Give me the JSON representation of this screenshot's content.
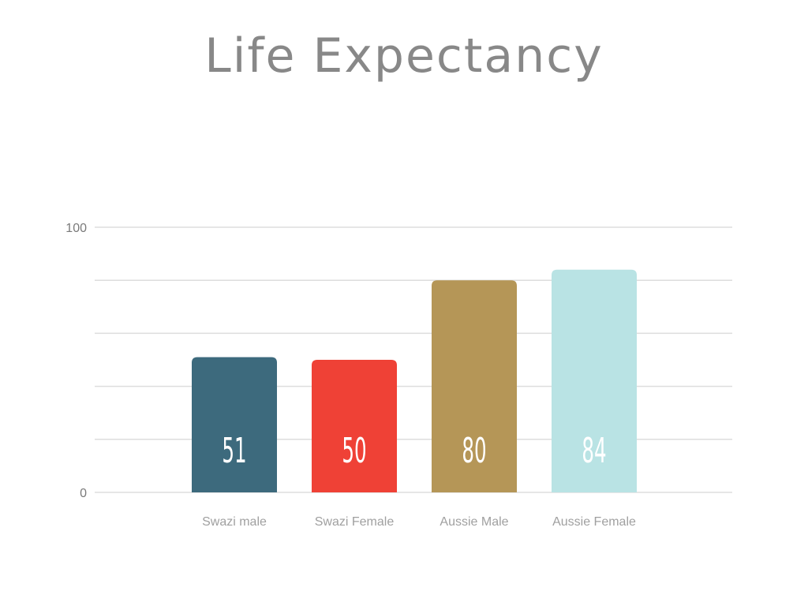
{
  "chart_data": {
    "type": "bar",
    "title": "Life Expectancy",
    "categories": [
      "Swazi male",
      "Swazi Female",
      "Aussie Male",
      "Aussie Female"
    ],
    "values": [
      51,
      50,
      80,
      84
    ],
    "data_labels": [
      "51",
      "50",
      "80",
      "84"
    ],
    "colors": [
      "#3d6a7d",
      "#ef4136",
      "#b59657",
      "#b9e3e4"
    ],
    "ylim": [
      0,
      100
    ],
    "yticks": [
      0,
      20,
      40,
      60,
      80,
      100
    ],
    "ytick_labels": [
      "0",
      "",
      "",
      "",
      "",
      "100"
    ],
    "xlabel": "",
    "ylabel": "",
    "grid": true
  }
}
